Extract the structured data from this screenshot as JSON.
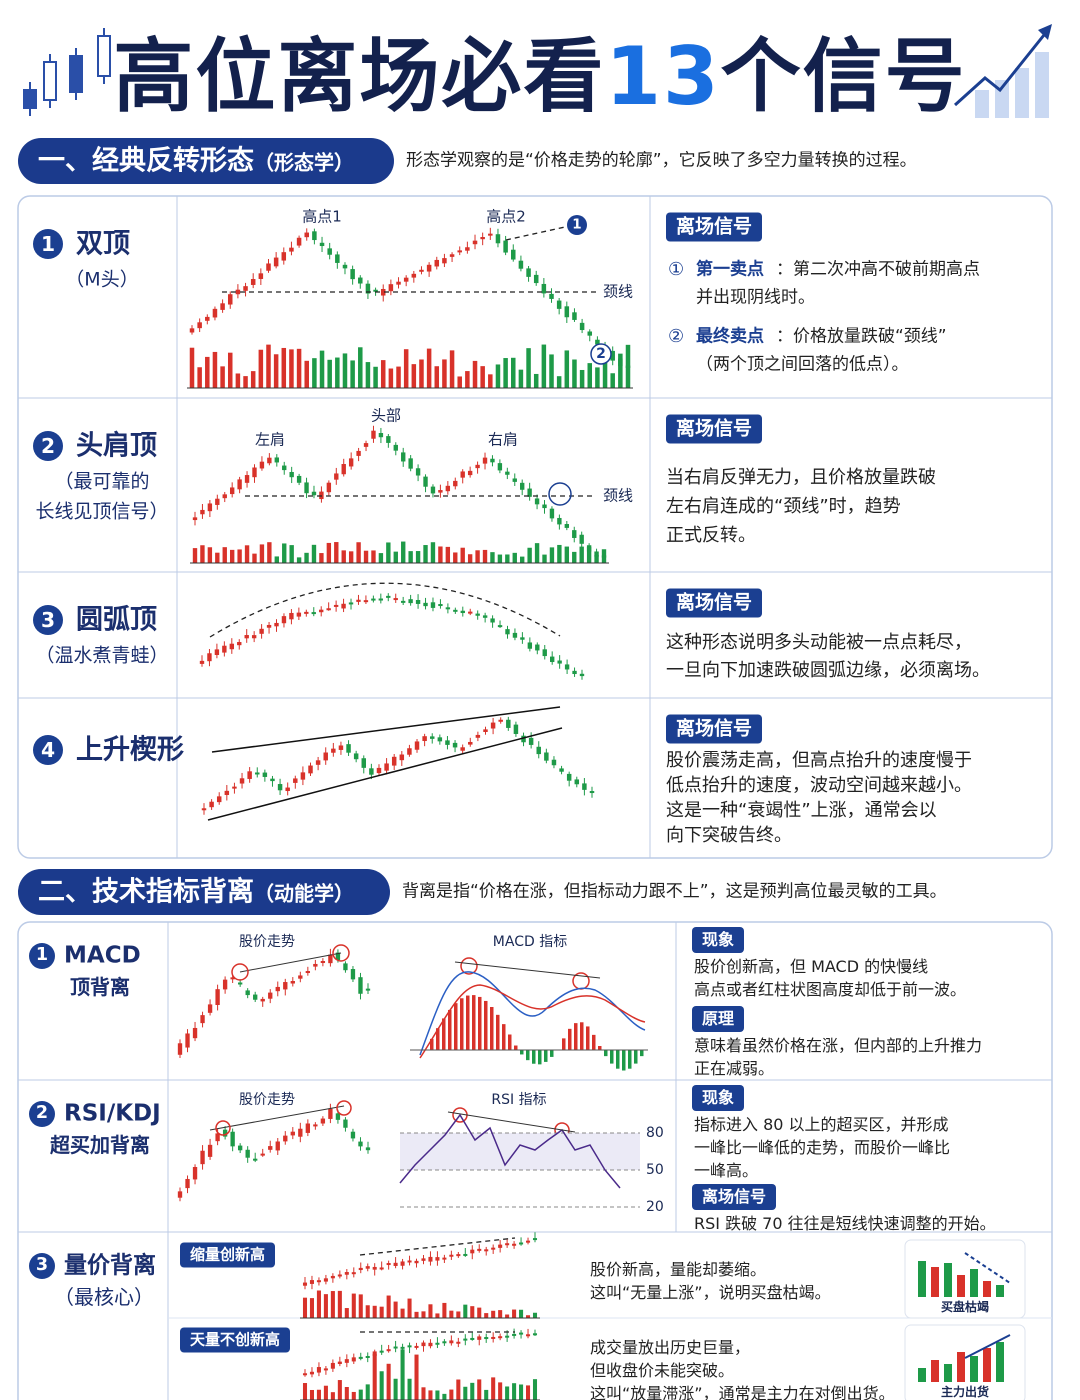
{
  "header": {
    "title_start": "高位离场必看",
    "title_number": "13",
    "title_end": "个信号"
  },
  "sections": [
    {
      "heading": "一、经典反转形态",
      "heading_note": "（形态学）",
      "intro": "形态学观察的是“价格走势的轮廓”，它反映了多空力量转换的过程。",
      "items": [
        {
          "number": "1",
          "name": "双顶",
          "subtitle_lines": [
            "（M头）"
          ],
          "chart_labels": [
            "高点1",
            "高点2",
            "颈线"
          ],
          "markers": [
            "1",
            "2"
          ],
          "signal_title": "离场信号",
          "signals": [
            {
              "marker": "①",
              "label": "第一卖点",
              "lines": [
                "：第二次冲高不破前期高点",
                "并出现阴线时。"
              ]
            },
            {
              "marker": "②",
              "label": "最终卖点",
              "lines": [
                "：价格放量跌破“颈线”",
                "（两个顶之间回落的低点）。"
              ]
            }
          ]
        },
        {
          "number": "2",
          "name": "头肩顶",
          "subtitle_lines": [
            "（最可靠的",
            "长线见顶信号）"
          ],
          "chart_labels": [
            "左肩",
            "头部",
            "右肩",
            "颈线"
          ],
          "signal_title": "离场信号",
          "lines": [
            "当右肩反弹无力，且价格放量跌破",
            "左右肩连成的“颈线”时，趋势",
            "正式反转。"
          ]
        },
        {
          "number": "3",
          "name": "圆弧顶",
          "subtitle_lines": [
            "（温水煮青蛙）"
          ],
          "signal_title": "离场信号",
          "lines": [
            "这种形态说明多头动能被一点点耗尽，",
            "一旦向下加速跌破圆弧边缘，必须离场。"
          ]
        },
        {
          "number": "4",
          "name": "上升楔形",
          "subtitle_lines": [],
          "signal_title": "离场信号",
          "lines": [
            "股价震荡走高，但高点抬升的速度慢于",
            "低点抬升的速度，波动空间越来越小。",
            "这是一种“衰竭性”上涨，通常会以",
            "向下突破告终。"
          ]
        }
      ]
    },
    {
      "heading": "二、技术指标背离",
      "heading_note": "（动能学）",
      "intro": "背离是指“价格在涨，但指标动力跟不上”，这是预判高位最灵敏的工具。",
      "items": [
        {
          "number": "1",
          "name": "MACD",
          "subtitle_lines": [
            "顶背离"
          ],
          "chart_titles": [
            "股价走势",
            "MACD 指标"
          ],
          "notes": [
            {
              "tag": "现象",
              "lines": [
                "股价创新高，但 MACD 的快慢线",
                "高点或者红柱状图高度却低于前一波。"
              ]
            },
            {
              "tag": "原理",
              "lines": [
                "意味着虽然价格在涨，但内部的上升推力",
                "正在减弱。"
              ]
            }
          ]
        },
        {
          "number": "2",
          "name": "RSI/KDJ",
          "subtitle_lines": [
            "超买加背离"
          ],
          "chart_titles": [
            "股价走势",
            "RSI 指标"
          ],
          "rsi_levels": [
            80,
            50,
            20
          ],
          "notes": [
            {
              "tag": "现象",
              "lines": [
                "指标进入 80 以上的超买区，并形成",
                "一峰比一峰低的走势，而股价一峰比",
                "一峰高。"
              ]
            },
            {
              "tag": "离场信号",
              "lines": [
                "RSI 跌破 70 往往是短线快速调整的开始。"
              ]
            }
          ]
        },
        {
          "number": "3",
          "name": "量价背离",
          "subtitle_lines": [
            "（最核心）"
          ],
          "cases": [
            {
              "tag": "缩量创新高",
              "lines": [
                "股价新高，量能却萎缩。",
                "这叫“无量上涨”，说明买盘枯竭。"
              ],
              "icon_label": "买盘枯竭"
            },
            {
              "tag": "天量不创新高",
              "lines": [
                "成交量放出历史巨量，",
                "但收盘价未能突破。",
                "这叫“放量滞涨”，通常是主力在对倒出货。"
              ],
              "icon_label": "主力出货"
            }
          ]
        }
      ]
    }
  ]
}
